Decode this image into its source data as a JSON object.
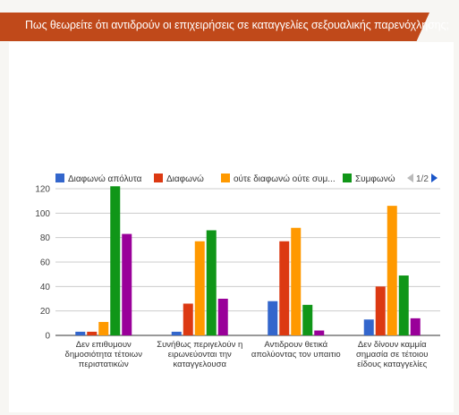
{
  "title": "Πως θεωρείτε ότι αντιδρούν οι επιχειρήσεις σε καταγγελίες σεξουαλικής παρενόχλησης;",
  "pager": {
    "label": "1/2"
  },
  "chart_data": {
    "type": "bar",
    "categories": [
      [
        "Δεν επιθυμουν",
        "δημοσιότητα τέτοιων",
        "περιστατικών"
      ],
      [
        "Συνήθως περιγελούν η",
        "ειρωνεύονται την",
        "καταγγελουσα"
      ],
      [
        "Αντιδρουν θετικά",
        "απολύοντας τον υπαιτιο"
      ],
      [
        "Δεν δίνουν καμμία",
        "σημασία σε τέτοιου",
        "είδους καταγγελίες"
      ]
    ],
    "series": [
      {
        "name": "Διαφωνώ απόλυτα",
        "color": "#3366cc",
        "values": [
          3,
          3,
          28,
          13
        ]
      },
      {
        "name": "Διαφωνώ",
        "color": "#dc3912",
        "values": [
          3,
          26,
          77,
          40
        ]
      },
      {
        "name": "ούτε διαφωνώ ούτε συμ...",
        "color": "#ff9900",
        "values": [
          11,
          77,
          88,
          106
        ]
      },
      {
        "name": "Συμφωνώ",
        "color": "#109618",
        "values": [
          122,
          86,
          25,
          49
        ]
      },
      {
        "name": "",
        "color": "#990099",
        "values": [
          83,
          30,
          4,
          14
        ]
      }
    ],
    "ylim": [
      0,
      120
    ],
    "yticks": [
      0,
      20,
      40,
      60,
      80,
      100,
      120
    ],
    "grid": true,
    "legend": "top"
  }
}
